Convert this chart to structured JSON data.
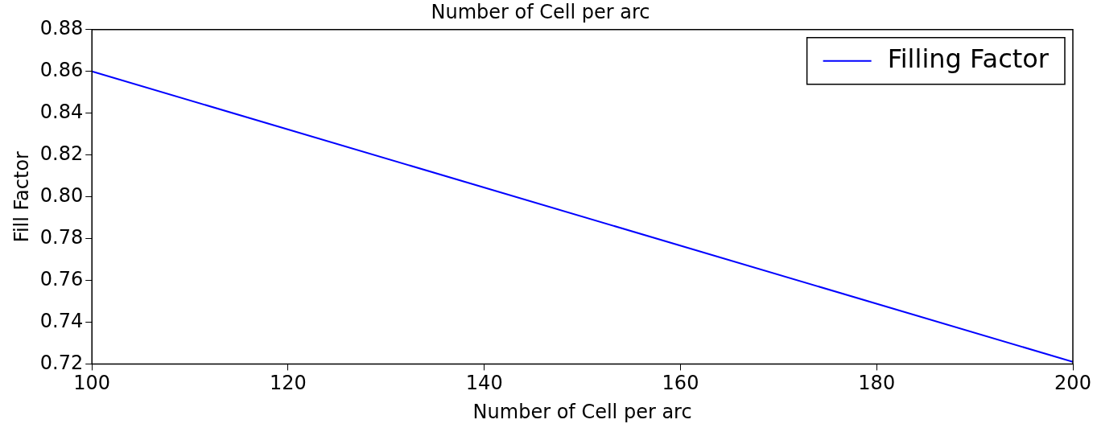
{
  "chart_data": {
    "type": "line",
    "title": "Number of Cell per arc",
    "xlabel": "Number of Cell per arc",
    "ylabel": "Fill Factor",
    "x": [
      100,
      200
    ],
    "series": [
      {
        "name": "Filling Factor",
        "color": "#0000ff",
        "values": [
          0.86,
          0.721
        ]
      }
    ],
    "xlim": [
      100,
      200
    ],
    "xticks": [
      100,
      120,
      140,
      160,
      180,
      200
    ],
    "ylim": [
      0.72,
      0.88
    ],
    "yticks": [
      0.72,
      0.74,
      0.76,
      0.78,
      {
        "value": 0.8,
        "label": "0.80"
      },
      0.82,
      0.84,
      0.86,
      0.88
    ],
    "grid": false,
    "legend": "top right",
    "marker": "none",
    "line_style": "solid"
  }
}
